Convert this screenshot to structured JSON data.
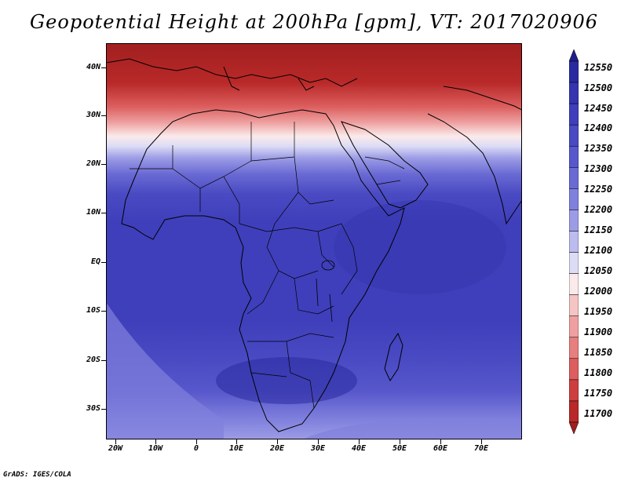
{
  "title": "Geopotential Height at 200hPa [gpm], VT: 2017020906",
  "footer": "GrADS: IGES/COLA",
  "lat_labels": [
    "40N",
    "30N",
    "20N",
    "10N",
    "EQ",
    "10S",
    "20S",
    "30S"
  ],
  "lon_labels": [
    "20W",
    "10W",
    "0",
    "10E",
    "20E",
    "30E",
    "40E",
    "50E",
    "60E",
    "70E"
  ],
  "colorbar": {
    "labels": [
      "12550",
      "12500",
      "12450",
      "12400",
      "12350",
      "12300",
      "12250",
      "12200",
      "12150",
      "12100",
      "12050",
      "12000",
      "11950",
      "11900",
      "11850",
      "11800",
      "11750",
      "11700"
    ],
    "colors_top_to_bottom": [
      "#1f1f8c",
      "#2a2aa0",
      "#3535b0",
      "#3f3fbb",
      "#4a4ac3",
      "#5858cc",
      "#6a6ad4",
      "#8080dd",
      "#9c9ce6",
      "#bcbcef",
      "#dcdcf6",
      "#fbeaea",
      "#f5c4c4",
      "#eea0a0",
      "#e67f7f",
      "#dc5e5e",
      "#cd3f3f",
      "#b92929",
      "#a11f1f"
    ]
  },
  "map": {
    "lon_range": [
      "20W",
      "80E"
    ],
    "lat_range": [
      "37S",
      "45N"
    ],
    "field": "geopotential height 200hPa",
    "high_color": "#a11f1f",
    "low_color": "#3535b0"
  }
}
